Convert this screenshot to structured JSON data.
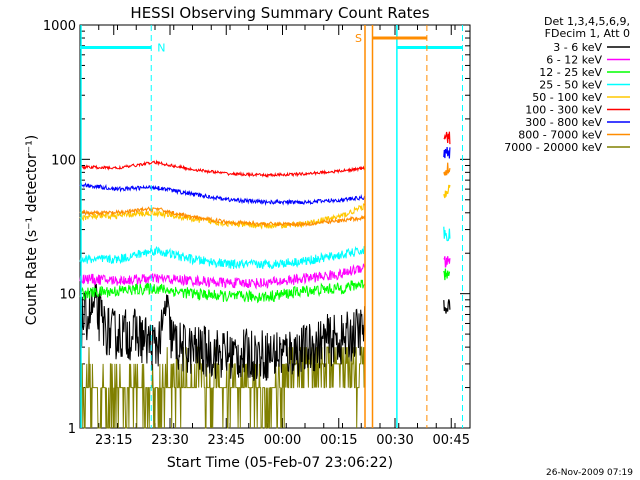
{
  "chart_data": {
    "type": "line",
    "title": "HESSI Observing Summary Count Rates",
    "xlabel": "Start Time (05-Feb-07 23:06:22)",
    "ylabel": "Count Rate (s⁻¹ detector⁻¹)",
    "yscale": "log",
    "ylim": [
      1,
      1000
    ],
    "y_ticks": [
      "1",
      "10",
      "100",
      "1000"
    ],
    "x_ticks": [
      "23:15",
      "23:30",
      "23:45",
      "00:00",
      "00:15",
      "00:30",
      "00:45"
    ],
    "x_range_minutes_since_2306": [
      0,
      104
    ],
    "legend_header": [
      "Det 1,3,4,5,6,9,",
      "FDecim 1, Att 0"
    ],
    "legend_position": "top-right outside",
    "timestamp": "26-Nov-2009 07:19",
    "markers": [
      {
        "label": "N",
        "color": "#00ffff",
        "t": 19
      },
      {
        "label": "S",
        "color": "#ff8c00",
        "t": 76
      }
    ],
    "series": [
      {
        "name": "3 - 6 keV",
        "color": "#000000",
        "points": [
          [
            0,
            6
          ],
          [
            2,
            7
          ],
          [
            4,
            8
          ],
          [
            6,
            6
          ],
          [
            8,
            5
          ],
          [
            10,
            5
          ],
          [
            15,
            5
          ],
          [
            20,
            4
          ],
          [
            22,
            5
          ],
          [
            23,
            9
          ],
          [
            24,
            5
          ],
          [
            26,
            4
          ],
          [
            30,
            3.8
          ],
          [
            40,
            3.5
          ],
          [
            50,
            3.5
          ],
          [
            60,
            3.8
          ],
          [
            66,
            4.5
          ],
          [
            70,
            4.5
          ],
          [
            76,
            5.5
          ]
        ]
      },
      {
        "name": "6 - 12 keV",
        "color": "#ff00ff",
        "points": [
          [
            0,
            13
          ],
          [
            10,
            12.5
          ],
          [
            20,
            13
          ],
          [
            30,
            12.5
          ],
          [
            40,
            12
          ],
          [
            50,
            12
          ],
          [
            60,
            13
          ],
          [
            70,
            14
          ],
          [
            76,
            16
          ]
        ]
      },
      {
        "name": "12 - 25 keV",
        "color": "#00ff00",
        "points": [
          [
            0,
            10
          ],
          [
            10,
            10.5
          ],
          [
            20,
            11
          ],
          [
            30,
            10
          ],
          [
            40,
            9.5
          ],
          [
            50,
            9.5
          ],
          [
            60,
            10.5
          ],
          [
            70,
            11
          ],
          [
            76,
            12
          ]
        ]
      },
      {
        "name": "25 - 50 keV",
        "color": "#00ffff",
        "points": [
          [
            0,
            18
          ],
          [
            10,
            18
          ],
          [
            20,
            21
          ],
          [
            30,
            18
          ],
          [
            40,
            16.5
          ],
          [
            50,
            16.5
          ],
          [
            60,
            17.5
          ],
          [
            70,
            19.5
          ],
          [
            76,
            21
          ]
        ]
      },
      {
        "name": "50 - 100 keV",
        "color": "#ffc800",
        "points": [
          [
            0,
            37
          ],
          [
            10,
            38
          ],
          [
            20,
            40
          ],
          [
            30,
            36
          ],
          [
            40,
            33
          ],
          [
            50,
            32
          ],
          [
            60,
            33
          ],
          [
            70,
            38
          ],
          [
            76,
            45
          ]
        ]
      },
      {
        "name": "100 - 300 keV",
        "color": "#ff0000",
        "points": [
          [
            0,
            88
          ],
          [
            10,
            86
          ],
          [
            20,
            95
          ],
          [
            30,
            84
          ],
          [
            40,
            78
          ],
          [
            50,
            76
          ],
          [
            60,
            78
          ],
          [
            70,
            82
          ],
          [
            76,
            86
          ]
        ]
      },
      {
        "name": "300 - 800 keV",
        "color": "#0000ff",
        "points": [
          [
            0,
            65
          ],
          [
            10,
            60
          ],
          [
            20,
            62
          ],
          [
            30,
            55
          ],
          [
            40,
            50
          ],
          [
            50,
            48
          ],
          [
            60,
            48
          ],
          [
            70,
            50
          ],
          [
            76,
            52
          ]
        ]
      },
      {
        "name": "800 - 7000 keV",
        "color": "#ff8c00",
        "points": [
          [
            0,
            40
          ],
          [
            10,
            40
          ],
          [
            20,
            43
          ],
          [
            30,
            37
          ],
          [
            40,
            34
          ],
          [
            50,
            33
          ],
          [
            60,
            33
          ],
          [
            70,
            35
          ],
          [
            76,
            37
          ]
        ]
      },
      {
        "name": "7000 - 20000 keV",
        "color": "#808000",
        "points": [
          [
            0,
            2
          ],
          [
            5,
            2
          ],
          [
            10,
            1.8
          ],
          [
            20,
            2
          ],
          [
            30,
            2.5
          ],
          [
            40,
            2
          ],
          [
            50,
            1.8
          ],
          [
            55,
            2.5
          ],
          [
            60,
            3
          ],
          [
            70,
            3
          ],
          [
            76,
            2.5
          ]
        ]
      }
    ],
    "after_gap": [
      {
        "color": "#ff0000",
        "value": 145
      },
      {
        "color": "#0000ff",
        "value": 110
      },
      {
        "color": "#ff8c00",
        "value": 85
      },
      {
        "color": "#ffc800",
        "value": 58
      },
      {
        "color": "#00ffff",
        "value": 28
      },
      {
        "color": "#ff00ff",
        "value": 17
      },
      {
        "color": "#00ff00",
        "value": 14
      },
      {
        "color": "#000000",
        "value": 8
      }
    ]
  }
}
